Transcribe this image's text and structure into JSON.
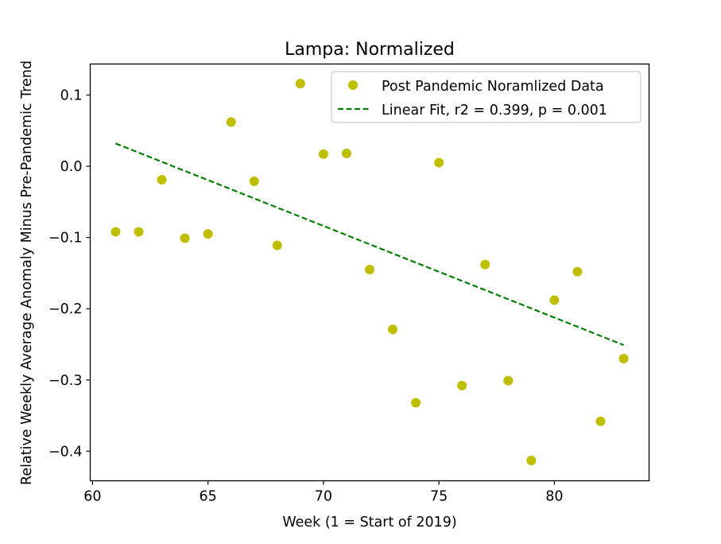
{
  "chart_data": {
    "type": "scatter",
    "title": "Lampa: Normalized",
    "xlabel": "Week (1 = Start of 2019)",
    "ylabel": "Relative Weekly Average Anomaly Minus Pre-Pandemic Trend",
    "xlim": [
      59.9,
      84.1
    ],
    "ylim": [
      -0.4415,
      0.1435
    ],
    "xticks": [
      60,
      65,
      70,
      75,
      80
    ],
    "yticks": [
      -0.4,
      -0.3,
      -0.2,
      -0.1,
      0.0,
      0.1
    ],
    "ytick_labels": [
      "−0.4",
      "−0.3",
      "−0.2",
      "−0.1",
      "0.0",
      "0.1"
    ],
    "grid": false,
    "legend_position": "top-right",
    "series": [
      {
        "name": "Post Pandemic Noramlized Data",
        "kind": "scatter",
        "color": "#bfbf00",
        "x": [
          61,
          62,
          63,
          64,
          65,
          66,
          67,
          68,
          69,
          70,
          71,
          72,
          73,
          74,
          75,
          76,
          77,
          78,
          79,
          80,
          81,
          82,
          83
        ],
        "y": [
          -0.092,
          -0.092,
          -0.019,
          -0.101,
          -0.095,
          0.062,
          -0.021,
          -0.111,
          0.116,
          0.017,
          0.018,
          -0.145,
          -0.229,
          -0.332,
          0.005,
          -0.308,
          -0.138,
          -0.301,
          -0.413,
          -0.188,
          -0.148,
          -0.358,
          -0.27
        ]
      },
      {
        "name": "Linear Fit, r2 = 0.399, p = 0.001",
        "kind": "line",
        "style": "dashed",
        "color": "#008000",
        "x": [
          61,
          83
        ],
        "y": [
          0.032,
          -0.251
        ]
      }
    ]
  }
}
